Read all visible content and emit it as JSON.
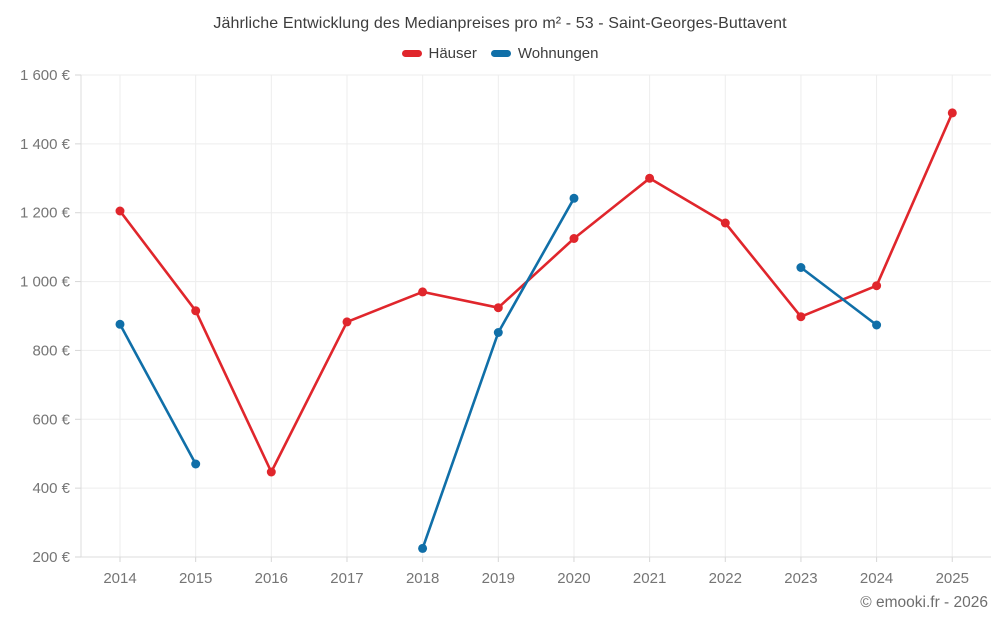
{
  "title": "Jährliche Entwicklung des Medianpreises pro m² - 53 - Saint-Georges-Buttavent",
  "footer": "© emooki.fr - 2026",
  "legend": {
    "items": [
      {
        "label": "Häuser"
      },
      {
        "label": "Wohnungen"
      }
    ]
  },
  "colors": {
    "haeuser": "#e0262c",
    "wohnungen": "#106fa8",
    "gridline": "#ededed",
    "axis": "#dcdcdc",
    "tick": "#d6d6d6",
    "tick_label": "#757575"
  },
  "chart_data": {
    "type": "line",
    "title": "Jährliche Entwicklung des Medianpreises pro m² - 53 - Saint-Georges-Buttavent",
    "categories": [
      "2014",
      "2015",
      "2016",
      "2017",
      "2018",
      "2019",
      "2020",
      "2021",
      "2022",
      "2023",
      "2024",
      "2025"
    ],
    "series": [
      {
        "id": "haeuser",
        "name": "Häuser",
        "color": "#e0262c",
        "values": [
          1205,
          915,
          447,
          883,
          970,
          924,
          1125,
          1300,
          1170,
          898,
          988,
          1490
        ]
      },
      {
        "id": "wohnungen",
        "name": "Wohnungen",
        "color": "#106fa8",
        "values": [
          876,
          470,
          null,
          null,
          225,
          852,
          1242,
          null,
          null,
          1041,
          874,
          null
        ]
      }
    ],
    "ylim": [
      200,
      1600
    ],
    "y_ticks": [
      {
        "value": 200,
        "label": "200 €"
      },
      {
        "value": 400,
        "label": "400 €"
      },
      {
        "value": 600,
        "label": "600 €"
      },
      {
        "value": 800,
        "label": "800 €"
      },
      {
        "value": 1000,
        "label": "1 000 €"
      },
      {
        "value": 1200,
        "label": "1 200 €"
      },
      {
        "value": 1400,
        "label": "1 400 €"
      },
      {
        "value": 1600,
        "label": "1 600 €"
      }
    ],
    "xlabel": "",
    "ylabel": "",
    "grid": true,
    "legend_position": "top",
    "currency": "€"
  }
}
